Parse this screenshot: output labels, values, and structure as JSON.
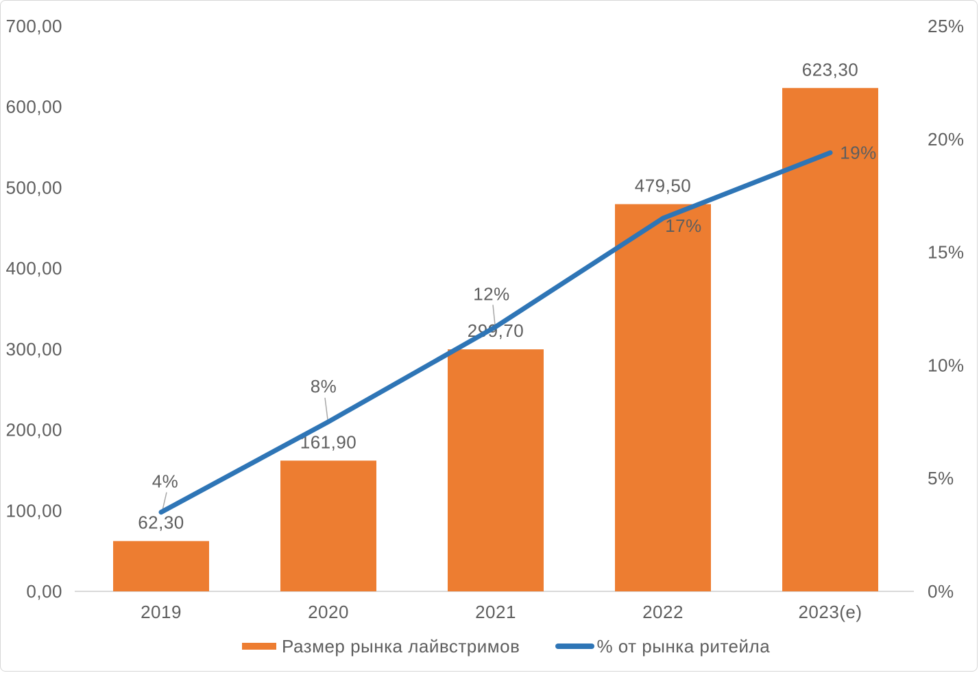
{
  "chart_data": {
    "type": "bar+line combo",
    "categories": [
      "2019",
      "2020",
      "2021",
      "2022",
      "2023(e)"
    ],
    "series": [
      {
        "name": "Размер рынка лайвстримов",
        "type": "bar",
        "axis": "left",
        "color": "#ED7D31",
        "values": [
          62.3,
          161.9,
          299.7,
          479.5,
          623.3
        ],
        "data_labels": [
          "62,30",
          "161,90",
          "299,70",
          "479,50",
          "623,30"
        ]
      },
      {
        "name": "% от рынка ритейла",
        "type": "line",
        "axis": "right",
        "color": "#2E75B6",
        "values": [
          3.5,
          7.5,
          11.7,
          16.5,
          19.4
        ],
        "data_labels": [
          "4%",
          "8%",
          "12%",
          "17%",
          "19%"
        ]
      }
    ],
    "left_axis": {
      "min": 0,
      "max": 700,
      "tick_values": [
        700,
        600,
        500,
        400,
        300,
        200,
        100,
        0
      ],
      "tick_labels": [
        "700,00",
        "600,00",
        "500,00",
        "400,00",
        "300,00",
        "200,00",
        "100,00",
        "0,00"
      ]
    },
    "right_axis": {
      "min": 0,
      "max": 25,
      "tick_values": [
        25,
        20,
        15,
        10,
        5,
        0
      ],
      "tick_labels": [
        "25%",
        "20%",
        "15%",
        "10%",
        "5%",
        "0%"
      ]
    },
    "grid": "off",
    "legend_position": "bottom"
  },
  "colors": {
    "bar": "#ED7D31",
    "line": "#2E75B6",
    "text": "#5E5E5E",
    "axis_line": "#D9D9D9",
    "leader_line": "#A6A6A6",
    "border": "#D6D6D6",
    "background": "#FFFFFF"
  }
}
